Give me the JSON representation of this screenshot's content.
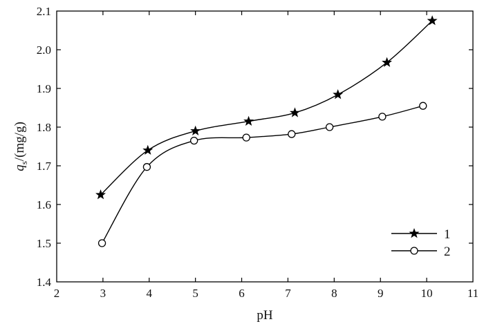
{
  "chart_data": {
    "type": "line",
    "xlabel": "pH",
    "ylabel": {
      "italic": "q",
      "subscript": "s",
      "rest": "/(mg/g)"
    },
    "xlim": [
      2,
      11
    ],
    "ylim": [
      1.4,
      2.1
    ],
    "x_ticks": [
      "2",
      "3",
      "4",
      "5",
      "6",
      "7",
      "8",
      "9",
      "10",
      "11"
    ],
    "y_ticks": [
      "1.4",
      "1.5",
      "1.6",
      "1.7",
      "1.8",
      "1.9",
      "2.0",
      "2.1"
    ],
    "grid": false,
    "legend_position": "bottom-right",
    "series": [
      {
        "name": "1",
        "marker": "star",
        "color": "#000000",
        "x": [
          2.95,
          3.97,
          5.0,
          6.15,
          7.15,
          8.08,
          9.14,
          10.12
        ],
        "y": [
          1.625,
          1.74,
          1.79,
          1.815,
          1.837,
          1.884,
          1.967,
          2.075
        ]
      },
      {
        "name": "2",
        "marker": "circle",
        "color": "#000000",
        "x": [
          2.98,
          3.95,
          4.97,
          6.1,
          7.08,
          7.9,
          9.04,
          9.92
        ],
        "y": [
          1.5,
          1.697,
          1.765,
          1.773,
          1.782,
          1.8,
          1.827,
          1.855
        ]
      }
    ]
  }
}
